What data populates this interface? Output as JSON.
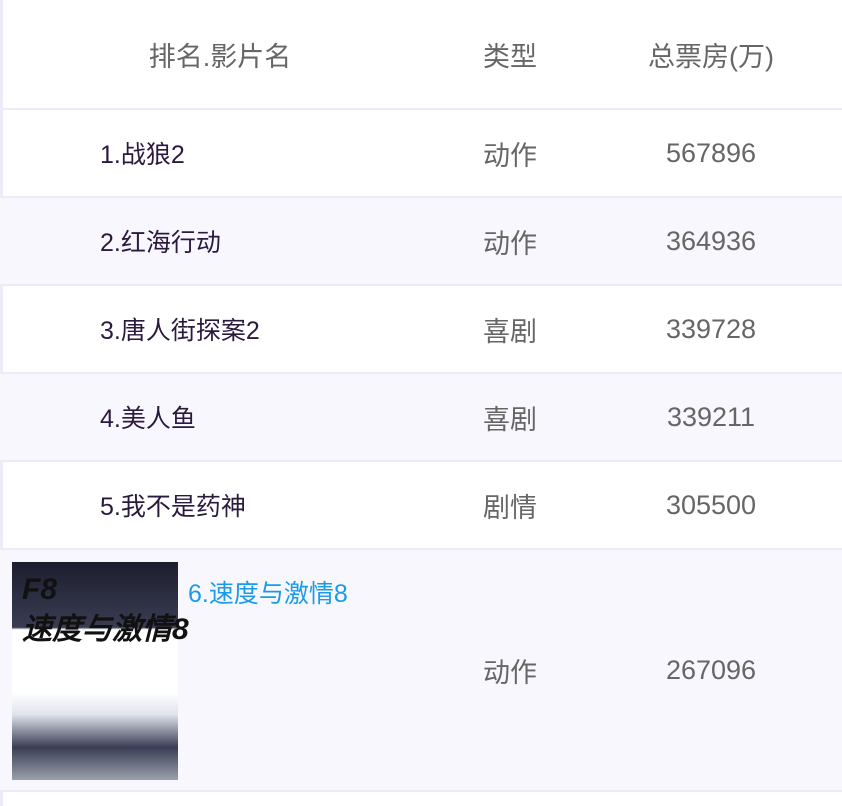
{
  "table": {
    "headers": [
      "排名.影片名",
      "类型",
      "总票房(万)"
    ],
    "rows": [
      {
        "name": "1.战狼2",
        "genre": "动作",
        "box_office": "567896"
      },
      {
        "name": "2.红海行动",
        "genre": "动作",
        "box_office": "364936"
      },
      {
        "name": "3.唐人街探案2",
        "genre": "喜剧",
        "box_office": "339728"
      },
      {
        "name": "4.美人鱼",
        "genre": "喜剧",
        "box_office": "339211"
      },
      {
        "name": "5.我不是药神",
        "genre": "剧情",
        "box_office": "305500"
      },
      {
        "name": "6.速度与激情8",
        "genre": "动作",
        "box_office": "267096",
        "poster_text": "F8 速度与激情8"
      }
    ]
  },
  "colors": {
    "highlight_link": "#1a9be6",
    "row_stripe": "#f8f7fd",
    "divider": "#ecebf8"
  }
}
